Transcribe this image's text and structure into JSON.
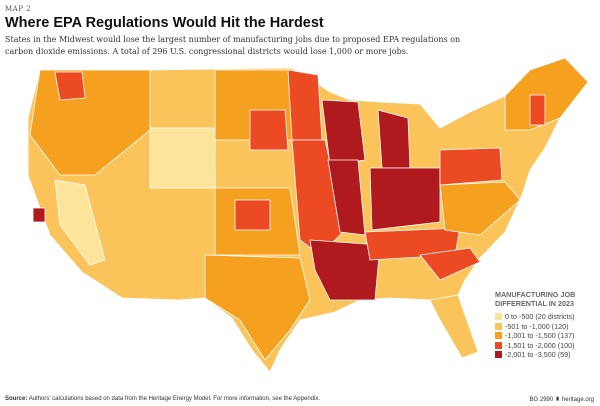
{
  "header": {
    "label": "MAP 2",
    "title": "Where EPA Regulations Would Hit the Hardest",
    "subtitle": "States in the Midwest would lose the largest number of manufacturing jobs due to proposed EPA regulations on carbon dioxide emissions. A total of 296 U.S. congressional districts would lose 1,000 or more jobs."
  },
  "legend": {
    "title": "MANUFACTURING JOB DIFFERENTIAL IN 2023",
    "items": [
      {
        "label": "0 to -500 (20 districts)",
        "color": "#FCE49A"
      },
      {
        "label": "-501 to -1,000 (120)",
        "color": "#FBC45A"
      },
      {
        "label": "-1,001 to -1,500 (137)",
        "color": "#F5A01E"
      },
      {
        "label": "-1,501 to -2,000 (100)",
        "color": "#EC4A23"
      },
      {
        "label": "-2,001 to -3,500 (59)",
        "color": "#B0191E"
      }
    ]
  },
  "footer": {
    "source_label": "Source:",
    "source": "Authors' calculations based on data from the Heritage Energy Model. For more information, see the Appendix.",
    "code": "BG 2990",
    "site": "heritage.org"
  }
}
